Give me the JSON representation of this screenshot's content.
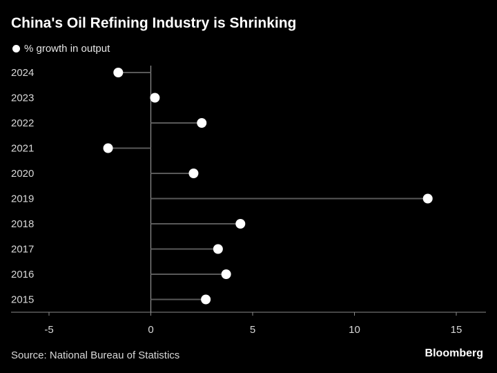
{
  "title": "China's Oil Refining Industry is Shrinking",
  "source": "Source: National Bureau of Statistics",
  "brand": "Bloomberg",
  "colors": {
    "background": "#000000",
    "marker": "#ffffff",
    "stem": "#595959",
    "axis": "#8c8c8c",
    "text": "#d9d9d9"
  },
  "chart_data": {
    "type": "scatter",
    "orientation": "horizontal",
    "style": "lollipop",
    "title": "China's Oil Refining Industry is Shrinking",
    "legend": "% growth in output",
    "legend_position": "top-left",
    "grid": false,
    "xlabel": "",
    "ylabel": "",
    "xlim": [
      -5,
      15
    ],
    "xticks": [
      -5,
      0,
      5,
      10,
      15
    ],
    "categories": [
      "2024",
      "2023",
      "2022",
      "2021",
      "2020",
      "2019",
      "2018",
      "2017",
      "2016",
      "2015"
    ],
    "series": [
      {
        "name": "% growth in output",
        "values": [
          -1.6,
          0.2,
          2.5,
          -2.1,
          2.1,
          13.6,
          4.4,
          3.3,
          3.7,
          2.7
        ]
      }
    ]
  }
}
